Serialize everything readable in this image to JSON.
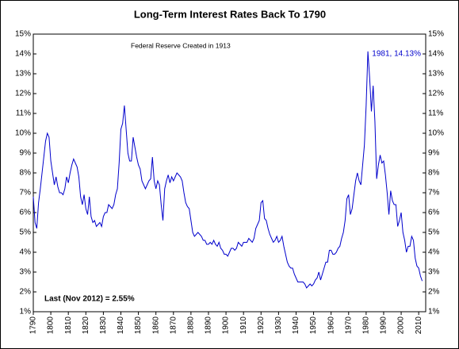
{
  "chart_data": {
    "type": "line",
    "title": "Long-Term Interest Rates Back To 1790",
    "annotations": [
      "Federal Reserve Created in 1913",
      "1981, 14.13%",
      "Last (Nov 2012) = 2.55%"
    ],
    "color": "#0000cc",
    "x": [
      1790,
      1791,
      1792,
      1793,
      1794,
      1795,
      1796,
      1797,
      1798,
      1799,
      1800,
      1801,
      1802,
      1803,
      1804,
      1805,
      1806,
      1807,
      1808,
      1809,
      1810,
      1811,
      1812,
      1813,
      1814,
      1815,
      1816,
      1817,
      1818,
      1819,
      1820,
      1821,
      1822,
      1823,
      1824,
      1825,
      1826,
      1827,
      1828,
      1829,
      1830,
      1831,
      1832,
      1833,
      1834,
      1835,
      1836,
      1837,
      1838,
      1839,
      1840,
      1841,
      1842,
      1843,
      1844,
      1845,
      1846,
      1847,
      1848,
      1849,
      1850,
      1851,
      1852,
      1853,
      1854,
      1855,
      1856,
      1857,
      1858,
      1859,
      1860,
      1861,
      1862,
      1863,
      1864,
      1865,
      1866,
      1867,
      1868,
      1869,
      1870,
      1871,
      1872,
      1873,
      1874,
      1875,
      1876,
      1877,
      1878,
      1879,
      1880,
      1881,
      1882,
      1883,
      1884,
      1885,
      1886,
      1887,
      1888,
      1889,
      1890,
      1891,
      1892,
      1893,
      1894,
      1895,
      1896,
      1897,
      1898,
      1899,
      1900,
      1901,
      1902,
      1903,
      1904,
      1905,
      1906,
      1907,
      1908,
      1909,
      1910,
      1911,
      1912,
      1913,
      1914,
      1915,
      1916,
      1917,
      1918,
      1919,
      1920,
      1921,
      1922,
      1923,
      1924,
      1925,
      1926,
      1927,
      1928,
      1929,
      1930,
      1931,
      1932,
      1933,
      1934,
      1935,
      1936,
      1937,
      1938,
      1939,
      1940,
      1941,
      1942,
      1943,
      1944,
      1945,
      1946,
      1947,
      1948,
      1949,
      1950,
      1951,
      1952,
      1953,
      1954,
      1955,
      1956,
      1957,
      1958,
      1959,
      1960,
      1961,
      1962,
      1963,
      1964,
      1965,
      1966,
      1967,
      1968,
      1969,
      1970,
      1971,
      1972,
      1973,
      1974,
      1975,
      1976,
      1977,
      1978,
      1979,
      1980,
      1981,
      1982,
      1983,
      1984,
      1985,
      1986,
      1987,
      1988,
      1989,
      1990,
      1991,
      1992,
      1993,
      1994,
      1995,
      1996,
      1997,
      1998,
      1999,
      2000,
      2001,
      2002,
      2003,
      2004,
      2005,
      2006,
      2007,
      2008,
      2009,
      2010,
      2011,
      2012
    ],
    "values": [
      6.8,
      5.5,
      5.2,
      6.5,
      7.2,
      8.0,
      8.8,
      9.6,
      10.0,
      9.8,
      8.6,
      8.0,
      7.4,
      7.8,
      7.3,
      7.0,
      7.0,
      6.9,
      7.2,
      7.8,
      7.5,
      8.0,
      8.4,
      8.7,
      8.5,
      8.3,
      7.8,
      6.8,
      6.4,
      6.9,
      6.2,
      5.9,
      6.8,
      5.8,
      5.5,
      5.6,
      5.3,
      5.4,
      5.5,
      5.3,
      5.8,
      6.0,
      6.0,
      6.4,
      6.3,
      6.2,
      6.4,
      6.9,
      7.2,
      8.5,
      10.2,
      10.5,
      11.4,
      10.2,
      9.0,
      8.6,
      8.6,
      9.8,
      9.3,
      8.8,
      8.4,
      8.2,
      7.6,
      7.4,
      7.2,
      7.4,
      7.6,
      7.7,
      8.8,
      7.6,
      7.2,
      7.6,
      7.4,
      6.4,
      5.6,
      7.2,
      7.6,
      7.9,
      7.5,
      7.8,
      7.6,
      7.8,
      8.0,
      7.9,
      7.8,
      7.6,
      7.0,
      6.5,
      6.3,
      6.2,
      5.6,
      5.0,
      4.8,
      4.9,
      5.0,
      4.9,
      4.8,
      4.6,
      4.6,
      4.4,
      4.4,
      4.5,
      4.4,
      4.6,
      4.4,
      4.3,
      4.5,
      4.2,
      4.1,
      3.9,
      3.9,
      3.8,
      4.0,
      4.2,
      4.2,
      4.1,
      4.2,
      4.5,
      4.4,
      4.3,
      4.5,
      4.5,
      4.5,
      4.7,
      4.6,
      4.5,
      4.7,
      5.2,
      5.4,
      5.6,
      6.5,
      6.6,
      5.7,
      5.6,
      5.2,
      4.9,
      4.7,
      4.5,
      4.6,
      4.8,
      4.5,
      4.6,
      4.8,
      4.3,
      3.9,
      3.5,
      3.3,
      3.2,
      3.2,
      2.9,
      2.7,
      2.5,
      2.5,
      2.5,
      2.5,
      2.4,
      2.2,
      2.3,
      2.4,
      2.3,
      2.4,
      2.6,
      2.7,
      3.0,
      2.6,
      2.9,
      3.2,
      3.5,
      3.5,
      4.1,
      4.1,
      3.9,
      3.9,
      4.0,
      4.2,
      4.3,
      4.7,
      5.0,
      5.6,
      6.7,
      6.9,
      5.9,
      6.2,
      6.9,
      7.6,
      8.0,
      7.6,
      7.4,
      8.4,
      9.4,
      11.4,
      14.13,
      12.8,
      11.1,
      12.4,
      10.6,
      7.7,
      8.4,
      8.9,
      8.5,
      8.6,
      7.9,
      7.0,
      5.9,
      7.1,
      6.6,
      6.4,
      6.4,
      5.3,
      5.6,
      6.0,
      5.0,
      4.6,
      4.0,
      4.3,
      4.3,
      4.8,
      4.6,
      3.7,
      3.3,
      3.2,
      2.8,
      2.55
    ],
    "xlim": [
      1790,
      2014
    ],
    "xticks": [
      1790,
      1800,
      1810,
      1820,
      1830,
      1840,
      1850,
      1860,
      1870,
      1880,
      1890,
      1900,
      1910,
      1920,
      1930,
      1940,
      1950,
      1960,
      1970,
      1980,
      1990,
      2000,
      2010
    ],
    "ylim": [
      1,
      15
    ],
    "yticks": [
      {
        "value": 1,
        "label": "1%"
      },
      {
        "value": 2,
        "label": "2%"
      },
      {
        "value": 3,
        "label": "3%"
      },
      {
        "value": 4,
        "label": "4%"
      },
      {
        "value": 5,
        "label": "5%"
      },
      {
        "value": 6,
        "label": "6%"
      },
      {
        "value": 7,
        "label": "7%"
      },
      {
        "value": 8,
        "label": "8%"
      },
      {
        "value": 9,
        "label": "9%"
      },
      {
        "value": 10,
        "label": "10%"
      },
      {
        "value": 11,
        "label": "11%"
      },
      {
        "value": 12,
        "label": "12%"
      },
      {
        "value": 13,
        "label": "13%"
      },
      {
        "value": 14,
        "label": "14%"
      },
      {
        "value": 15,
        "label": "15%"
      }
    ],
    "grid": false
  }
}
